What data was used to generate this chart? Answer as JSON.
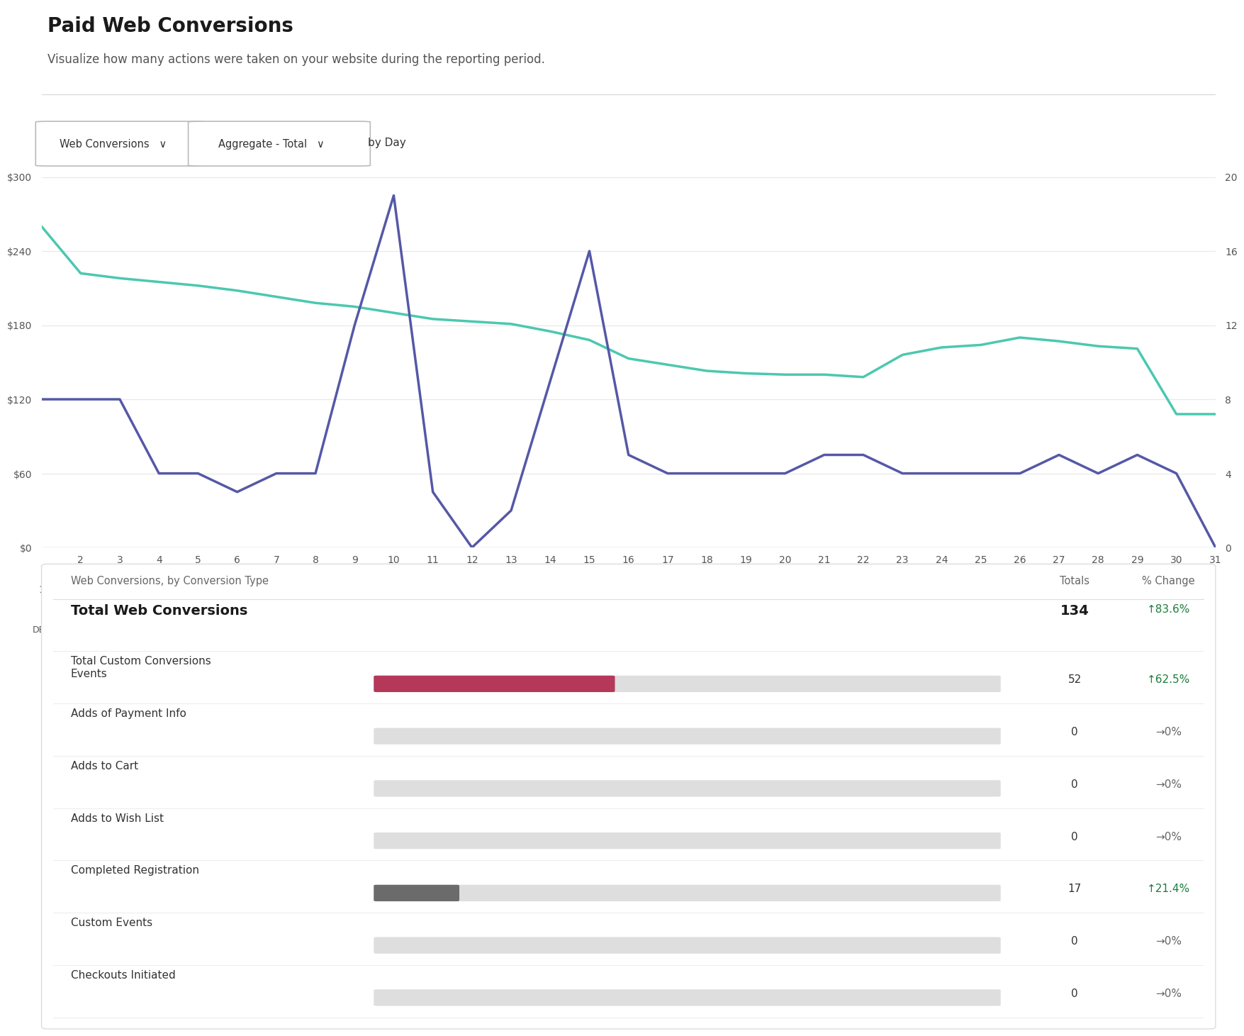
{
  "title": "Paid Web Conversions",
  "subtitle": "Visualize how many actions were taken on your website during the reporting period.",
  "filter1": "Web Conversions",
  "filter2": "Aggregate - Total",
  "filter3": "by Day",
  "days": [
    1,
    2,
    3,
    4,
    5,
    6,
    7,
    8,
    9,
    10,
    11,
    12,
    13,
    14,
    15,
    16,
    17,
    18,
    19,
    20,
    21,
    22,
    23,
    24,
    25,
    26,
    27,
    28,
    29,
    30,
    31
  ],
  "spend": [
    260,
    222,
    218,
    215,
    212,
    208,
    203,
    198,
    195,
    190,
    185,
    183,
    181,
    175,
    168,
    153,
    148,
    143,
    141,
    140,
    140,
    138,
    156,
    162,
    164,
    170,
    167,
    163,
    161,
    108,
    108
  ],
  "total": [
    8,
    8,
    8,
    4,
    4,
    3,
    4,
    4,
    12,
    19,
    3,
    0,
    2,
    9,
    16,
    5,
    4,
    4,
    4,
    4,
    5,
    5,
    4,
    4,
    4,
    4,
    5,
    4,
    5,
    4,
    0
  ],
  "spend_color": "#4BC8B0",
  "total_color": "#5558A6",
  "left_yticks": [
    0,
    60,
    120,
    180,
    240,
    300
  ],
  "left_ylabels": [
    "$0",
    "$60",
    "$120",
    "$180",
    "$240",
    "$300"
  ],
  "right_yticks": [
    0,
    4,
    8,
    12,
    16,
    20
  ],
  "right_ylabels": [
    "0",
    "4",
    "8",
    "12",
    "16",
    "20"
  ],
  "bg_color": "#FFFFFF",
  "grid_color": "#E8E8E8",
  "table_title": "Web Conversions, by Conversion Type",
  "table_header_totals": "Totals",
  "table_header_change": "% Change",
  "rows": [
    {
      "label": "Total Web Conversions",
      "is_header": true,
      "bar_value": null,
      "bar_color": null,
      "total": "134",
      "change": "↑83.6%",
      "change_color": "#1B7F3C"
    },
    {
      "label": "Total Custom Conversions\nEvents",
      "is_header": false,
      "bar_value": 0.38,
      "bar_color": "#B5375A",
      "total": "52",
      "change": "↑62.5%",
      "change_color": "#1B7F3C"
    },
    {
      "label": "Adds of Payment Info",
      "is_header": false,
      "bar_value": 0.0,
      "bar_color": "#CCCCCC",
      "total": "0",
      "change": "→0%",
      "change_color": "#666666"
    },
    {
      "label": "Adds to Cart",
      "is_header": false,
      "bar_value": 0.0,
      "bar_color": "#CCCCCC",
      "total": "0",
      "change": "→0%",
      "change_color": "#666666"
    },
    {
      "label": "Adds to Wish List",
      "is_header": false,
      "bar_value": 0.0,
      "bar_color": "#CCCCCC",
      "total": "0",
      "change": "→0%",
      "change_color": "#666666"
    },
    {
      "label": "Completed Registration",
      "is_header": false,
      "bar_value": 0.13,
      "bar_color": "#6B6B6B",
      "total": "17",
      "change": "↑21.4%",
      "change_color": "#1B7F3C"
    },
    {
      "label": "Custom Events",
      "is_header": false,
      "bar_value": 0.0,
      "bar_color": "#CCCCCC",
      "total": "0",
      "change": "→0%",
      "change_color": "#666666"
    },
    {
      "label": "Checkouts Initiated",
      "is_header": false,
      "bar_value": 0.0,
      "bar_color": "#CCCCCC",
      "total": "0",
      "change": "→0%",
      "change_color": "#666666"
    }
  ]
}
